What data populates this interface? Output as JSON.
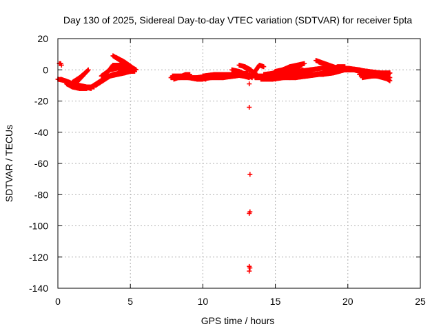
{
  "chart_data": {
    "type": "scatter",
    "title": "Day 130 of 2025, Sidereal Day-to-day VTEC variation (SDTVAR) for receiver 5pta",
    "xlabel": "GPS time / hours",
    "ylabel": "SDTVAR / TECUs",
    "xlim": [
      0,
      25
    ],
    "ylim": [
      -140,
      20
    ],
    "xticks": [
      0,
      5,
      10,
      15,
      20,
      25
    ],
    "yticks": [
      -140,
      -120,
      -100,
      -80,
      -60,
      -40,
      -20,
      0,
      20
    ],
    "grid": true,
    "marker": "+",
    "colors": {
      "series": "#ff0000",
      "grid": "#b0b0b0",
      "axis": "#000000"
    },
    "series": [
      {
        "name": "SDTVAR",
        "tracks": [
          [
            [
              0.0,
              -6
            ],
            [
              0.5,
              -7
            ],
            [
              1.0,
              -9
            ],
            [
              1.5,
              -10
            ],
            [
              2.0,
              -11
            ],
            [
              2.5,
              -11
            ]
          ],
          [
            [
              0.2,
              -6
            ],
            [
              0.8,
              -8
            ],
            [
              1.2,
              -10
            ],
            [
              1.8,
              -11
            ],
            [
              2.3,
              -12
            ]
          ],
          [
            [
              0.6,
              -9
            ],
            [
              1.0,
              -11
            ],
            [
              1.5,
              -12
            ],
            [
              2.0,
              -12
            ]
          ],
          [
            [
              1.0,
              -8
            ],
            [
              1.5,
              -5
            ],
            [
              2.0,
              -1
            ]
          ],
          [
            [
              1.2,
              -9
            ],
            [
              1.7,
              -4
            ],
            [
              2.1,
              0
            ]
          ],
          [
            [
              2.3,
              -11
            ],
            [
              2.8,
              -8
            ],
            [
              3.3,
              -5
            ],
            [
              3.8,
              -3
            ],
            [
              4.3,
              -2
            ],
            [
              4.8,
              -1
            ],
            [
              5.2,
              -1
            ]
          ],
          [
            [
              2.6,
              -10
            ],
            [
              3.1,
              -7
            ],
            [
              3.6,
              -4
            ],
            [
              4.1,
              -3
            ],
            [
              4.6,
              -2
            ],
            [
              5.0,
              -1
            ]
          ],
          [
            [
              3.0,
              -4
            ],
            [
              3.6,
              0
            ],
            [
              4.1,
              1
            ],
            [
              4.6,
              0
            ],
            [
              5.0,
              -1
            ]
          ],
          [
            [
              3.3,
              -3
            ],
            [
              3.8,
              3
            ],
            [
              4.3,
              3
            ],
            [
              4.8,
              1
            ],
            [
              5.3,
              -1
            ]
          ],
          [
            [
              3.8,
              9
            ],
            [
              4.3,
              6
            ],
            [
              4.8,
              3
            ],
            [
              5.4,
              0
            ]
          ],
          [
            [
              4.0,
              8
            ],
            [
              4.6,
              5
            ],
            [
              5.2,
              1
            ]
          ],
          [
            [
              4.4,
              6
            ],
            [
              4.9,
              3
            ],
            [
              5.3,
              0
            ]
          ],
          [
            [
              7.8,
              -5
            ],
            [
              8.4,
              -5
            ],
            [
              9.0,
              -5
            ],
            [
              9.6,
              -6
            ],
            [
              10.0,
              -6
            ]
          ],
          [
            [
              7.9,
              -4
            ],
            [
              8.5,
              -4
            ],
            [
              9.1,
              -5
            ],
            [
              9.7,
              -5
            ],
            [
              10.2,
              -6
            ]
          ],
          [
            [
              8.0,
              -6
            ],
            [
              8.6,
              -4
            ],
            [
              9.0,
              -3
            ]
          ],
          [
            [
              8.3,
              -5
            ],
            [
              8.8,
              -3
            ],
            [
              9.1,
              -3
            ]
          ],
          [
            [
              9.6,
              -5
            ],
            [
              10.4,
              -4
            ],
            [
              11.2,
              -4
            ],
            [
              12.0,
              -3
            ],
            [
              12.8,
              -4
            ],
            [
              13.2,
              -5
            ]
          ],
          [
            [
              9.8,
              -6
            ],
            [
              10.6,
              -5
            ],
            [
              11.4,
              -5
            ],
            [
              12.2,
              -4
            ],
            [
              13.0,
              -3
            ],
            [
              13.4,
              -4
            ]
          ],
          [
            [
              10.0,
              -4
            ],
            [
              10.8,
              -3
            ],
            [
              11.6,
              -3
            ],
            [
              12.4,
              -3
            ],
            [
              13.1,
              -2
            ]
          ],
          [
            [
              12.0,
              0
            ],
            [
              12.5,
              -1
            ],
            [
              13.0,
              -3
            ],
            [
              13.4,
              -5
            ]
          ],
          [
            [
              12.5,
              3
            ],
            [
              12.9,
              2
            ],
            [
              13.3,
              0
            ],
            [
              13.6,
              -3
            ],
            [
              14.0,
              -5
            ]
          ],
          [
            [
              12.8,
              2
            ],
            [
              13.2,
              0
            ],
            [
              13.6,
              -2
            ]
          ],
          [
            [
              13.6,
              -1
            ],
            [
              13.9,
              3
            ],
            [
              14.2,
              2
            ]
          ],
          [
            [
              13.4,
              -4
            ],
            [
              14.2,
              -4
            ],
            [
              15.0,
              -4
            ],
            [
              15.8,
              -3
            ],
            [
              16.6,
              -3
            ],
            [
              17.4,
              -3
            ],
            [
              18.2,
              -3
            ],
            [
              19.0,
              -2
            ],
            [
              19.8,
              0
            ],
            [
              20.6,
              0
            ],
            [
              21.4,
              -1
            ],
            [
              22.2,
              -2
            ],
            [
              22.8,
              -3
            ]
          ],
          [
            [
              13.6,
              -5
            ],
            [
              14.4,
              -5
            ],
            [
              15.2,
              -5
            ],
            [
              16.0,
              -4
            ],
            [
              16.8,
              -4
            ],
            [
              17.6,
              -3
            ],
            [
              18.4,
              -2
            ],
            [
              19.2,
              0
            ],
            [
              20.0,
              1
            ],
            [
              20.8,
              0
            ],
            [
              21.6,
              -2
            ],
            [
              22.4,
              -4
            ],
            [
              22.9,
              -7
            ]
          ],
          [
            [
              14.0,
              -6
            ],
            [
              14.8,
              -6
            ],
            [
              15.6,
              -5
            ],
            [
              16.4,
              -5
            ],
            [
              17.2,
              -4
            ],
            [
              18.0,
              -3
            ],
            [
              18.8,
              -1
            ],
            [
              19.6,
              0
            ],
            [
              20.4,
              0
            ],
            [
              21.2,
              -2
            ],
            [
              22.0,
              -4
            ],
            [
              22.8,
              -6
            ]
          ],
          [
            [
              14.2,
              -3
            ],
            [
              15.0,
              -2
            ],
            [
              15.8,
              -2
            ],
            [
              16.6,
              -1
            ],
            [
              17.4,
              0
            ],
            [
              18.2,
              1
            ],
            [
              19.0,
              1
            ],
            [
              19.8,
              1
            ],
            [
              20.6,
              0
            ],
            [
              21.4,
              -1
            ],
            [
              22.2,
              -2
            ],
            [
              22.9,
              -2
            ]
          ],
          [
            [
              14.5,
              -5
            ],
            [
              15.0,
              -1
            ],
            [
              15.5,
              0
            ],
            [
              16.0,
              2
            ],
            [
              16.5,
              3
            ],
            [
              17.0,
              4
            ]
          ],
          [
            [
              15.0,
              -6
            ],
            [
              15.5,
              -3
            ],
            [
              16.0,
              -1
            ],
            [
              16.5,
              1
            ],
            [
              16.8,
              3
            ]
          ],
          [
            [
              16.0,
              -5
            ],
            [
              16.5,
              -2
            ],
            [
              16.9,
              0
            ]
          ],
          [
            [
              17.8,
              6
            ],
            [
              18.4,
              4
            ],
            [
              19.0,
              2
            ],
            [
              19.6,
              0
            ],
            [
              20.2,
              0
            ]
          ],
          [
            [
              18.0,
              5
            ],
            [
              18.6,
              3
            ],
            [
              19.2,
              1
            ],
            [
              19.8,
              0
            ]
          ],
          [
            [
              18.3,
              -3
            ],
            [
              18.8,
              0
            ],
            [
              19.3,
              2
            ],
            [
              19.8,
              2
            ]
          ],
          [
            [
              20.8,
              -3
            ],
            [
              21.5,
              -3
            ],
            [
              22.2,
              -3
            ],
            [
              22.9,
              -2
            ]
          ],
          [
            [
              21.0,
              -5
            ],
            [
              21.7,
              -4
            ],
            [
              22.4,
              -4
            ],
            [
              22.9,
              -5
            ]
          ]
        ],
        "points": [
          [
            0.1,
            4
          ],
          [
            0.15,
            4
          ],
          [
            0.2,
            4
          ],
          [
            0.25,
            3
          ],
          [
            13.2,
            -9
          ],
          [
            13.2,
            -24
          ],
          [
            13.25,
            -67
          ],
          [
            13.2,
            -92
          ],
          [
            13.25,
            -91
          ],
          [
            13.2,
            -126
          ],
          [
            13.25,
            -127
          ],
          [
            13.2,
            -129
          ]
        ]
      }
    ]
  }
}
